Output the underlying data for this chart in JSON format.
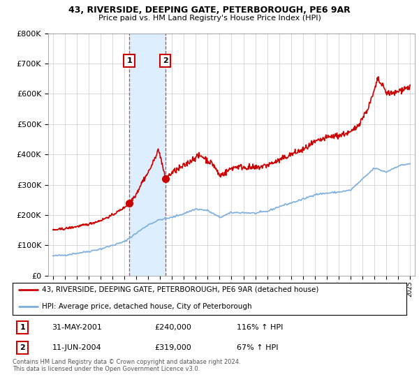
{
  "title": "43, RIVERSIDE, DEEPING GATE, PETERBOROUGH, PE6 9AR",
  "subtitle": "Price paid vs. HM Land Registry's House Price Index (HPI)",
  "sale1_date": 2001.42,
  "sale1_price": 240000,
  "sale1_label": "1",
  "sale1_text": "31-MAY-2001",
  "sale1_hpi_pct": "116% ↑ HPI",
  "sale2_date": 2004.44,
  "sale2_price": 319000,
  "sale2_label": "2",
  "sale2_text": "11-JUN-2004",
  "sale2_hpi_pct": "67% ↑ HPI",
  "legend_red": "43, RIVERSIDE, DEEPING GATE, PETERBOROUGH, PE6 9AR (detached house)",
  "legend_blue": "HPI: Average price, detached house, City of Peterborough",
  "footer": "Contains HM Land Registry data © Crown copyright and database right 2024.\nThis data is licensed under the Open Government Licence v3.0.",
  "red_color": "#cc0000",
  "blue_color": "#7aade0",
  "shade_color": "#ddeeff",
  "ylim": [
    0,
    800000
  ],
  "xlim_start": 1994.6,
  "xlim_end": 2025.4
}
